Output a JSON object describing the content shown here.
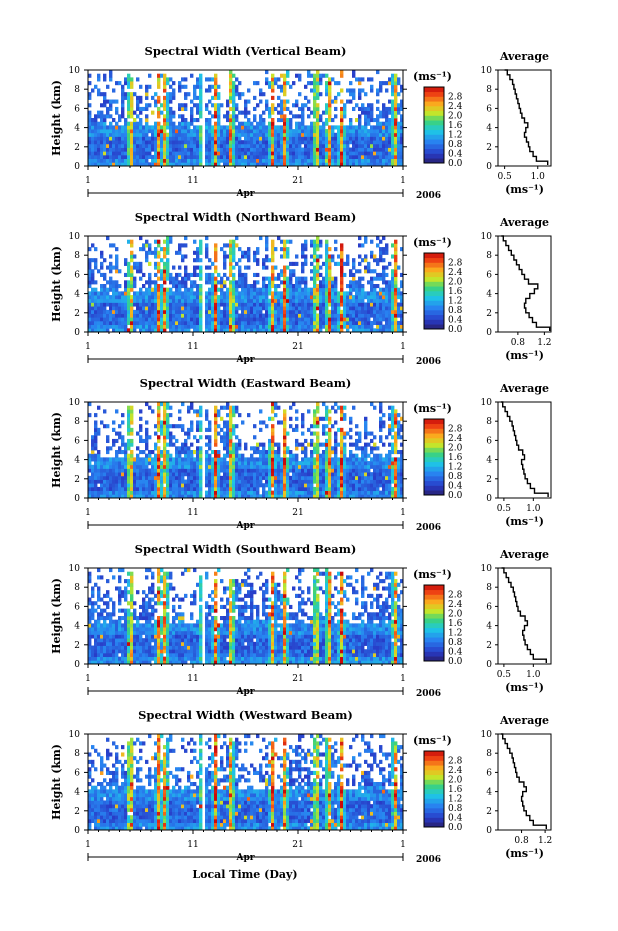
{
  "figure": {
    "xlabel": "Local Time (Day)",
    "month": "Apr",
    "year": "2006",
    "ylabel": "Height (km)",
    "avg_title": "Average",
    "colorbar_unit": "(ms⁻¹)",
    "avg_xlabel": "(ms⁻¹)"
  },
  "chart_data": [
    {
      "type": "heatmap",
      "title": "Spectral Width (Vertical Beam)",
      "ylabel": "Height (km)",
      "ylim": [
        0,
        10
      ],
      "yticks": [
        0,
        2,
        4,
        6,
        8,
        10
      ],
      "xlim_day": [
        1,
        31
      ],
      "xticks": [
        "1",
        "11",
        "21",
        "1"
      ],
      "colorbar": {
        "ticks": [
          "0.0",
          "0.4",
          "0.8",
          "1.2",
          "1.6",
          "2.0",
          "2.4",
          "2.8"
        ]
      },
      "average": {
        "xlim": [
          0.4,
          1.2
        ],
        "xticks": [
          "0.5",
          "1.0"
        ],
        "heights": [
          0.1,
          0.5,
          1,
          1.5,
          2,
          2.5,
          3,
          3.5,
          4,
          4.5,
          5,
          5.5,
          6,
          6.5,
          7,
          7.5,
          8,
          8.5,
          9,
          9.5,
          10
        ],
        "values": [
          1.15,
          0.98,
          0.93,
          0.88,
          0.86,
          0.83,
          0.8,
          0.82,
          0.85,
          0.8,
          0.76,
          0.74,
          0.72,
          0.7,
          0.68,
          0.66,
          0.64,
          0.62,
          0.58,
          0.54,
          0.5
        ]
      }
    },
    {
      "type": "heatmap",
      "title": "Spectral Width (Northward Beam)",
      "ylabel": "Height (km)",
      "ylim": [
        0,
        10
      ],
      "yticks": [
        0,
        2,
        4,
        6,
        8,
        10
      ],
      "xlim_day": [
        1,
        31
      ],
      "xticks": [
        "1",
        "11",
        "21",
        "1"
      ],
      "colorbar": {
        "ticks": [
          "0.0",
          "0.4",
          "0.8",
          "1.2",
          "1.6",
          "2.0",
          "2.4",
          "2.8"
        ]
      },
      "average": {
        "xlim": [
          0.5,
          1.3
        ],
        "xticks": [
          "0.8",
          "1.2"
        ],
        "heights": [
          0.1,
          0.5,
          1,
          1.5,
          2,
          2.5,
          3,
          3.5,
          4,
          4.5,
          5,
          5.5,
          6,
          6.5,
          7,
          7.5,
          8,
          8.5,
          9,
          9.5,
          10
        ],
        "values": [
          1.28,
          1.08,
          1.02,
          0.97,
          0.92,
          0.9,
          0.92,
          0.98,
          1.05,
          1.1,
          0.96,
          0.9,
          0.86,
          0.82,
          0.78,
          0.74,
          0.7,
          0.66,
          0.62,
          0.58,
          0.55
        ]
      }
    },
    {
      "type": "heatmap",
      "title": "Spectral Width (Eastward Beam)",
      "ylabel": "Height (km)",
      "ylim": [
        0,
        10
      ],
      "yticks": [
        0,
        2,
        4,
        6,
        8,
        10
      ],
      "xlim_day": [
        1,
        31
      ],
      "xticks": [
        "1",
        "11",
        "21",
        "1"
      ],
      "colorbar": {
        "ticks": [
          "0.0",
          "0.4",
          "0.8",
          "1.2",
          "1.6",
          "2.0",
          "2.4",
          "2.8"
        ]
      },
      "average": {
        "xlim": [
          0.4,
          1.3
        ],
        "xticks": [
          "0.5",
          "1.0"
        ],
        "heights": [
          0.1,
          0.5,
          1,
          1.5,
          2,
          2.5,
          3,
          3.5,
          4,
          4.5,
          5,
          5.5,
          6,
          6.5,
          7,
          7.5,
          8,
          8.5,
          9,
          9.5,
          10
        ],
        "values": [
          1.25,
          1.02,
          0.95,
          0.9,
          0.86,
          0.84,
          0.82,
          0.8,
          0.85,
          0.82,
          0.75,
          0.72,
          0.7,
          0.68,
          0.66,
          0.64,
          0.6,
          0.56,
          0.52,
          0.48,
          0.45
        ]
      }
    },
    {
      "type": "heatmap",
      "title": "Spectral Width (Southward Beam)",
      "ylabel": "Height (km)",
      "ylim": [
        0,
        10
      ],
      "yticks": [
        0,
        2,
        4,
        6,
        8,
        10
      ],
      "xlim_day": [
        1,
        31
      ],
      "xticks": [
        "1",
        "11",
        "21",
        "1"
      ],
      "colorbar": {
        "ticks": [
          "0.0",
          "0.4",
          "0.8",
          "1.2",
          "1.6",
          "2.0",
          "2.4",
          "2.8"
        ]
      },
      "average": {
        "xlim": [
          0.4,
          1.3
        ],
        "xticks": [
          "0.5",
          "1.0"
        ],
        "heights": [
          0.1,
          0.5,
          1,
          1.5,
          2,
          2.5,
          3,
          3.5,
          4,
          4.5,
          5,
          5.5,
          6,
          6.5,
          7,
          7.5,
          8,
          8.5,
          9,
          9.5,
          10
        ],
        "values": [
          1.22,
          1.0,
          0.95,
          0.9,
          0.86,
          0.84,
          0.82,
          0.85,
          0.9,
          0.86,
          0.78,
          0.74,
          0.72,
          0.7,
          0.68,
          0.66,
          0.62,
          0.58,
          0.54,
          0.5,
          0.46
        ]
      }
    },
    {
      "type": "heatmap",
      "title": "Spectral Width (Westward Beam)",
      "ylabel": "Height (km)",
      "ylim": [
        0,
        10
      ],
      "yticks": [
        0,
        2,
        4,
        6,
        8,
        10
      ],
      "xlim_day": [
        1,
        31
      ],
      "xticks": [
        "1",
        "11",
        "21",
        "1"
      ],
      "colorbar": {
        "ticks": [
          "0.0",
          "0.4",
          "0.8",
          "1.2",
          "1.6",
          "2.0",
          "2.4",
          "2.8"
        ]
      },
      "average": {
        "xlim": [
          0.4,
          1.3
        ],
        "xticks": [
          "0.8",
          "1.2"
        ],
        "heights": [
          0.1,
          0.5,
          1,
          1.5,
          2,
          2.5,
          3,
          3.5,
          4,
          4.5,
          5,
          5.5,
          6,
          6.5,
          7,
          7.5,
          8,
          8.5,
          9,
          9.5,
          10
        ],
        "values": [
          1.22,
          1.0,
          0.94,
          0.88,
          0.84,
          0.82,
          0.8,
          0.82,
          0.88,
          0.84,
          0.76,
          0.72,
          0.7,
          0.68,
          0.66,
          0.64,
          0.6,
          0.56,
          0.52,
          0.48,
          0.45
        ]
      }
    }
  ]
}
